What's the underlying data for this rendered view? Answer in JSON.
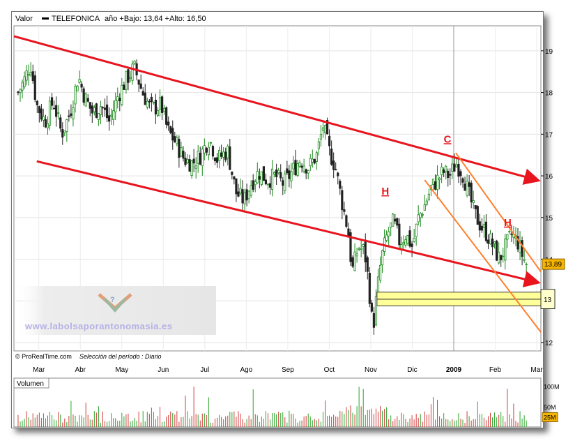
{
  "header": {
    "valor_label": "Valor",
    "ticker": "TELEFONICA",
    "range_text": "año +Bajo: 13,64 +Alto: 16,50"
  },
  "footer": {
    "source": "© ProRealTime.com",
    "period": "Selección del período : Diario"
  },
  "watermark": "www.labolsaporantonomasia.es",
  "chart_data": {
    "type": "candlestick",
    "series_name": "TELEFONICA",
    "y_ticks": [
      12,
      13,
      14,
      15,
      16,
      17,
      18,
      19
    ],
    "y_tick_labels": [
      "12",
      "13",
      "14",
      "15",
      "16",
      "17",
      "18",
      "19"
    ],
    "ylim": [
      11.8,
      19.6
    ],
    "x_labels": [
      "Mar",
      "Abr",
      "May",
      "Jun",
      "Jul",
      "Ago",
      "Sep",
      "Oct",
      "Nov",
      "Dic",
      "2009",
      "Feb",
      "Mar"
    ],
    "x_label_positions": [
      0,
      1,
      2,
      3,
      4,
      5,
      6,
      7,
      8,
      9,
      10,
      11,
      12
    ],
    "xlim": [
      -0.6,
      12.1
    ],
    "last_price": 13.89,
    "last_price_label": "13,89",
    "closes": [
      {
        "t": -0.5,
        "v": 18.0
      },
      {
        "t": -0.35,
        "v": 18.3
      },
      {
        "t": -0.2,
        "v": 18.7
      },
      {
        "t": -0.05,
        "v": 17.7
      },
      {
        "t": 0.15,
        "v": 17.3
      },
      {
        "t": 0.35,
        "v": 17.8
      },
      {
        "t": 0.55,
        "v": 17.0
      },
      {
        "t": 0.75,
        "v": 17.5
      },
      {
        "t": 0.95,
        "v": 18.4
      },
      {
        "t": 1.1,
        "v": 17.9
      },
      {
        "t": 1.3,
        "v": 17.5
      },
      {
        "t": 1.5,
        "v": 17.7
      },
      {
        "t": 1.7,
        "v": 17.3
      },
      {
        "t": 1.9,
        "v": 17.9
      },
      {
        "t": 2.1,
        "v": 18.3
      },
      {
        "t": 2.3,
        "v": 18.6
      },
      {
        "t": 2.5,
        "v": 18.0
      },
      {
        "t": 2.7,
        "v": 17.6
      },
      {
        "t": 2.95,
        "v": 17.7
      },
      {
        "t": 3.1,
        "v": 17.1
      },
      {
        "t": 3.3,
        "v": 16.8
      },
      {
        "t": 3.5,
        "v": 16.4
      },
      {
        "t": 3.7,
        "v": 16.3
      },
      {
        "t": 3.9,
        "v": 16.5
      },
      {
        "t": 4.1,
        "v": 16.9
      },
      {
        "t": 4.3,
        "v": 16.4
      },
      {
        "t": 4.55,
        "v": 16.6
      },
      {
        "t": 4.75,
        "v": 15.6
      },
      {
        "t": 4.95,
        "v": 15.4
      },
      {
        "t": 5.1,
        "v": 15.8
      },
      {
        "t": 5.3,
        "v": 16.1
      },
      {
        "t": 5.5,
        "v": 15.9
      },
      {
        "t": 5.7,
        "v": 16.0
      },
      {
        "t": 5.9,
        "v": 15.8
      },
      {
        "t": 6.1,
        "v": 16.1
      },
      {
        "t": 6.3,
        "v": 16.4
      },
      {
        "t": 6.5,
        "v": 16.2
      },
      {
        "t": 6.7,
        "v": 16.5
      },
      {
        "t": 6.85,
        "v": 17.2
      },
      {
        "t": 7.0,
        "v": 16.6
      },
      {
        "t": 7.15,
        "v": 16.2
      },
      {
        "t": 7.3,
        "v": 15.4
      },
      {
        "t": 7.45,
        "v": 14.7
      },
      {
        "t": 7.55,
        "v": 13.7
      },
      {
        "t": 7.7,
        "v": 14.3
      },
      {
        "t": 7.85,
        "v": 14.2
      },
      {
        "t": 7.95,
        "v": 13.4
      },
      {
        "t": 8.05,
        "v": 12.3
      },
      {
        "t": 8.15,
        "v": 13.2
      },
      {
        "t": 8.25,
        "v": 14.0
      },
      {
        "t": 8.4,
        "v": 14.6
      },
      {
        "t": 8.55,
        "v": 14.9
      },
      {
        "t": 8.7,
        "v": 14.4
      },
      {
        "t": 8.85,
        "v": 14.6
      },
      {
        "t": 9.0,
        "v": 14.3
      },
      {
        "t": 9.15,
        "v": 15.0
      },
      {
        "t": 9.3,
        "v": 15.3
      },
      {
        "t": 9.45,
        "v": 15.7
      },
      {
        "t": 9.6,
        "v": 15.9
      },
      {
        "t": 9.75,
        "v": 16.1
      },
      {
        "t": 9.9,
        "v": 16.0
      },
      {
        "t": 10.05,
        "v": 16.3
      },
      {
        "t": 10.2,
        "v": 16.1
      },
      {
        "t": 10.35,
        "v": 15.6
      },
      {
        "t": 10.5,
        "v": 15.1
      },
      {
        "t": 10.65,
        "v": 14.8
      },
      {
        "t": 10.8,
        "v": 14.6
      },
      {
        "t": 10.95,
        "v": 14.3
      },
      {
        "t": 11.1,
        "v": 14.0
      },
      {
        "t": 11.25,
        "v": 14.3
      },
      {
        "t": 11.4,
        "v": 14.6
      },
      {
        "t": 11.55,
        "v": 14.4
      },
      {
        "t": 11.65,
        "v": 14.1
      },
      {
        "t": 11.75,
        "v": 13.89
      }
    ],
    "trendlines": [
      {
        "name": "upper-channel",
        "color": "#e8141e",
        "from": {
          "t": -0.6,
          "v": 19.35
        },
        "to": {
          "t": 12.0,
          "v": 15.9
        },
        "arrow": true
      },
      {
        "name": "lower-channel",
        "color": "#e8141e",
        "from": {
          "t": -0.05,
          "v": 16.35
        },
        "to": {
          "t": 12.0,
          "v": 13.45
        },
        "arrow": true
      },
      {
        "name": "short-upper",
        "color": "#ff7f2a",
        "from": {
          "t": 10.05,
          "v": 16.55
        },
        "to": {
          "t": 12.1,
          "v": 13.7
        },
        "arrow": false
      },
      {
        "name": "short-lower",
        "color": "#ff7f2a",
        "from": {
          "t": 9.3,
          "v": 15.9
        },
        "to": {
          "t": 12.1,
          "v": 12.25
        },
        "arrow": false
      }
    ],
    "annotations": [
      {
        "text": "H",
        "t": 8.35,
        "v": 15.55
      },
      {
        "text": "C",
        "t": 9.85,
        "v": 16.8
      },
      {
        "text": "H",
        "t": 11.3,
        "v": 14.8
      }
    ],
    "support_zone": {
      "v_low": 12.88,
      "v_mid": 13.04,
      "v_high": 13.21,
      "t_from": 8.15,
      "label": "13"
    },
    "volume": {
      "label": "Volumen",
      "y_tick_labels": [
        "100M",
        "50M",
        "25M"
      ],
      "y_ticks": [
        100,
        50,
        25
      ],
      "ylim": [
        0,
        120
      ],
      "highlight_label": "25M"
    }
  }
}
